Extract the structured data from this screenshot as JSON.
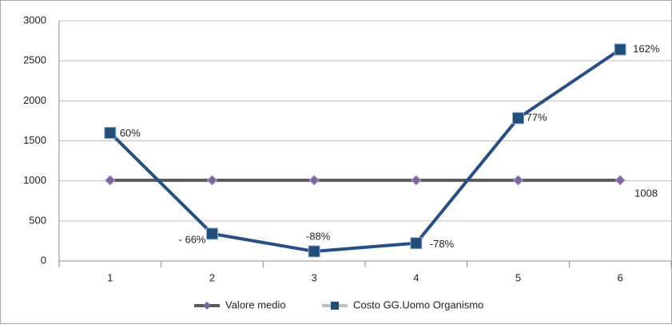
{
  "chart_data": {
    "type": "line",
    "categories": [
      "1",
      "2",
      "3",
      "4",
      "5",
      "6"
    ],
    "series": [
      {
        "name": "Valore medio",
        "color": "#595959",
        "marker": "diamond",
        "marker_color": "#8064a2",
        "values": [
          1008,
          1008,
          1008,
          1008,
          1008,
          1008
        ]
      },
      {
        "name": "Costo GG.Uomo Organismo",
        "color": "#254f8b",
        "marker": "square",
        "marker_color": "#1f4e79",
        "values": [
          1600,
          340,
          120,
          222,
          1784,
          2641
        ],
        "annotations": [
          "60%",
          "- 66%",
          "-88%",
          "-78%",
          "77%",
          "162%"
        ]
      }
    ],
    "ylim": [
      0,
      3000
    ],
    "yticks": [
      0,
      500,
      1000,
      1500,
      2000,
      2500,
      3000
    ],
    "grid": true,
    "legend": "bottom"
  }
}
